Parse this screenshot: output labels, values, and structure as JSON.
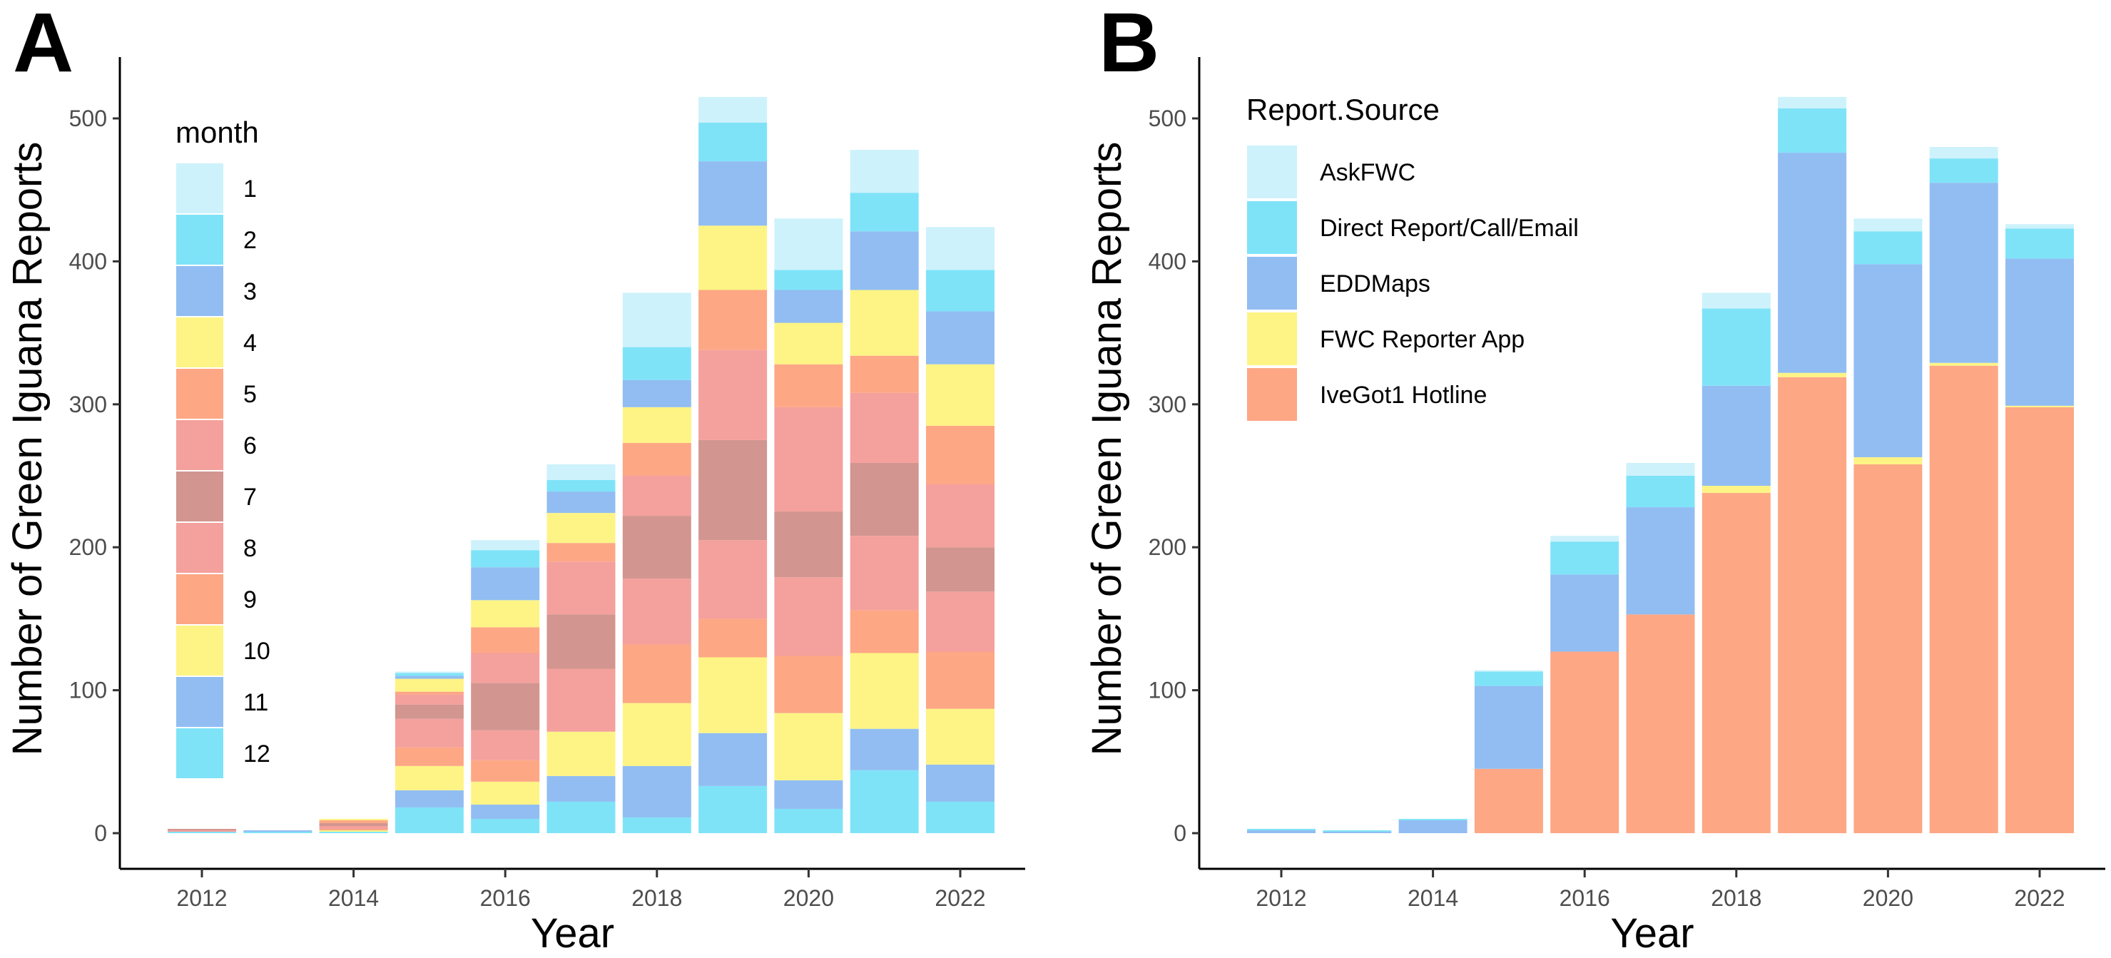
{
  "chart_data": [
    {
      "panel": "A",
      "type": "bar",
      "stacked": true,
      "xlabel": "Year",
      "ylabel": "Number of Green Iguana Reports",
      "x_ticks": [
        "2012",
        "2014",
        "2016",
        "2018",
        "2020",
        "2022"
      ],
      "y_ticks": [
        "0",
        "100",
        "200",
        "300",
        "400",
        "500"
      ],
      "ylim": [
        0,
        530
      ],
      "categories": [
        "2012",
        "2013",
        "2014",
        "2015",
        "2016",
        "2017",
        "2018",
        "2019",
        "2020",
        "2021",
        "2022"
      ],
      "legend_title": "month",
      "legend_position": "top-left inside",
      "series": [
        {
          "name": "12",
          "color": "#7fe3f8",
          "values": [
            1,
            1,
            1,
            18,
            10,
            22,
            11,
            33,
            17,
            44,
            22
          ]
        },
        {
          "name": "11",
          "color": "#91bdf2",
          "values": [
            0,
            1,
            0,
            12,
            10,
            18,
            36,
            37,
            20,
            29,
            26
          ]
        },
        {
          "name": "10",
          "color": "#fdf485",
          "values": [
            0,
            0,
            1,
            17,
            16,
            31,
            44,
            53,
            47,
            53,
            39
          ]
        },
        {
          "name": "9",
          "color": "#fda785",
          "values": [
            0,
            0,
            1,
            13,
            15,
            0,
            41,
            27,
            40,
            30,
            40
          ]
        },
        {
          "name": "8",
          "color": "#f4a09d",
          "values": [
            1,
            0,
            2,
            20,
            21,
            44,
            46,
            55,
            55,
            52,
            42
          ]
        },
        {
          "name": "7",
          "color": "#d2958f",
          "values": [
            1,
            0,
            2,
            10,
            33,
            38,
            44,
            70,
            46,
            51,
            31
          ]
        },
        {
          "name": "6",
          "color": "#f4a09d",
          "values": [
            0,
            0,
            0,
            7,
            21,
            37,
            28,
            63,
            73,
            49,
            44
          ]
        },
        {
          "name": "5",
          "color": "#fda785",
          "values": [
            0,
            0,
            2,
            2,
            18,
            13,
            23,
            42,
            30,
            26,
            41
          ]
        },
        {
          "name": "4",
          "color": "#fdf485",
          "values": [
            0,
            0,
            1,
            9,
            19,
            21,
            25,
            45,
            29,
            46,
            43
          ]
        },
        {
          "name": "3",
          "color": "#91bdf2",
          "values": [
            0,
            0,
            0,
            2,
            23,
            15,
            19,
            45,
            23,
            41,
            37
          ]
        },
        {
          "name": "2",
          "color": "#7fe3f8",
          "values": [
            0,
            0,
            0,
            2,
            12,
            8,
            23,
            27,
            14,
            27,
            29
          ]
        },
        {
          "name": "1",
          "color": "#cdf2fb",
          "values": [
            0,
            0,
            0,
            1,
            7,
            11,
            38,
            18,
            36,
            30,
            30
          ]
        }
      ],
      "legend_order": [
        "1",
        "2",
        "3",
        "4",
        "5",
        "6",
        "7",
        "8",
        "9",
        "10",
        "11",
        "12"
      ]
    },
    {
      "panel": "B",
      "type": "bar",
      "stacked": true,
      "xlabel": "Year",
      "ylabel": "Number of Green Iguana Reports",
      "x_ticks": [
        "2012",
        "2014",
        "2016",
        "2018",
        "2020",
        "2022"
      ],
      "y_ticks": [
        "0",
        "100",
        "200",
        "300",
        "400",
        "500"
      ],
      "ylim": [
        0,
        530
      ],
      "categories": [
        "2012",
        "2013",
        "2014",
        "2015",
        "2016",
        "2017",
        "2018",
        "2019",
        "2020",
        "2021",
        "2022"
      ],
      "legend_title": "Report.Source",
      "legend_position": "top-left inside",
      "series": [
        {
          "name": "IveGot1 Hotline",
          "color": "#fda785",
          "values": [
            0,
            0,
            0,
            45,
            127,
            153,
            238,
            319,
            258,
            327,
            298
          ]
        },
        {
          "name": "FWC Reporter App",
          "color": "#fdf485",
          "values": [
            0,
            0,
            0,
            0,
            0,
            0,
            5,
            3,
            5,
            2,
            1
          ]
        },
        {
          "name": "EDDMaps",
          "color": "#91bdf2",
          "values": [
            2,
            1,
            9,
            58,
            54,
            75,
            70,
            154,
            135,
            126,
            103
          ]
        },
        {
          "name": "Direct Report/Call/Email",
          "color": "#7fe3f8",
          "values": [
            1,
            1,
            1,
            10,
            23,
            22,
            54,
            31,
            23,
            17,
            21
          ]
        },
        {
          "name": "AskFWC",
          "color": "#cdf2fb",
          "values": [
            0,
            0,
            0,
            1,
            4,
            9,
            11,
            8,
            9,
            8,
            3
          ]
        }
      ],
      "legend_order": [
        "AskFWC",
        "Direct Report/Call/Email",
        "EDDMaps",
        "FWC Reporter App",
        "IveGot1 Hotline"
      ]
    }
  ]
}
